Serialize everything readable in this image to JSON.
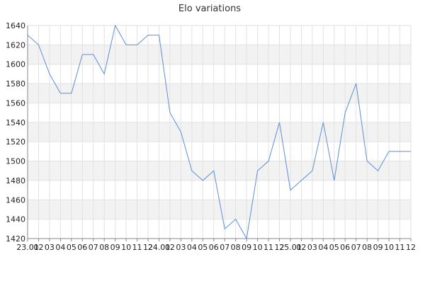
{
  "chart_data": {
    "type": "line",
    "title": "Elo variations",
    "xlabel": "",
    "ylabel": "",
    "ylim": [
      1420,
      1640
    ],
    "yticks": [
      1420,
      1440,
      1460,
      1480,
      1500,
      1520,
      1540,
      1560,
      1580,
      1600,
      1620,
      1640
    ],
    "x_tick_labels": [
      "23.01",
      "02",
      "03",
      "04",
      "05",
      "06",
      "07",
      "08",
      "09",
      "10",
      "11",
      "12",
      "24.01",
      "02",
      "03",
      "04",
      "05",
      "06",
      "07",
      "08",
      "09",
      "10",
      "11",
      "12",
      "25.01",
      "02",
      "03",
      "04",
      "05",
      "06",
      "07",
      "08",
      "09",
      "10",
      "11",
      "12"
    ],
    "grid": true,
    "line_color": "#5b8fd9",
    "band_color": "#f2f2f2",
    "series": [
      {
        "values": [
          1630,
          1620,
          1590,
          1570,
          1570,
          1610,
          1610,
          1590,
          1640,
          1620,
          1620,
          1630,
          1630,
          1550,
          1530,
          1490,
          1480,
          1490,
          1430,
          1440,
          1420,
          1490,
          1500,
          1540,
          1470,
          1480,
          1490,
          1540,
          1480,
          1550,
          1580,
          1500,
          1490,
          1510,
          1510,
          1510
        ]
      }
    ]
  }
}
